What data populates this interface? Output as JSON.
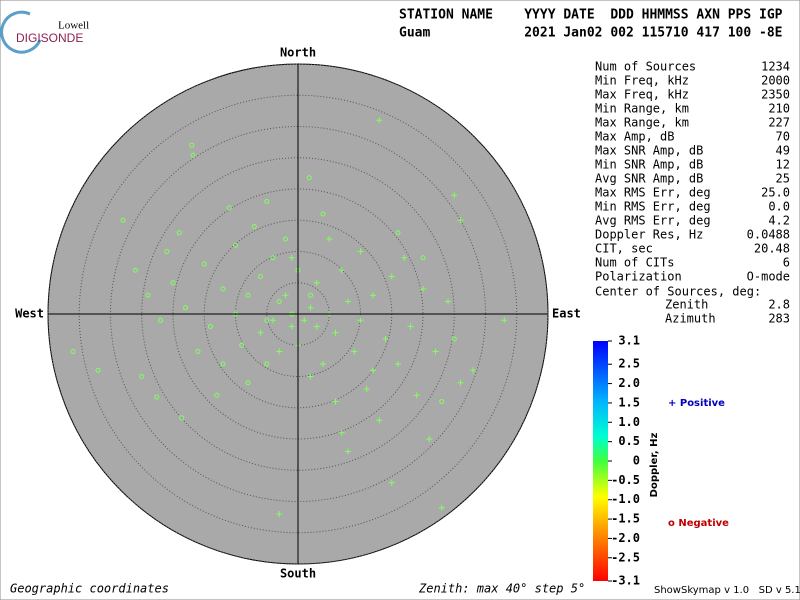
{
  "logo": {
    "top": "Lowell",
    "bottom": "DIGISONDE"
  },
  "header": {
    "labels": "STATION NAME    YYYY DATE  DDD HHMMSS AXN PPS IGP",
    "values": "Guam            2021 Jan02 002 115710 417 100 -8E"
  },
  "stats": {
    "rows": [
      [
        "Num of Sources",
        "1234"
      ],
      [
        "Min Freq, kHz",
        "2000"
      ],
      [
        "Max Freq, kHz",
        "2350"
      ],
      [
        "Min Range, km",
        "210"
      ],
      [
        "Max Range, km",
        "227"
      ],
      [
        "Max Amp, dB",
        "70"
      ],
      [
        "Max SNR Amp, dB",
        "49"
      ],
      [
        "Min SNR Amp, dB",
        "12"
      ],
      [
        "Avg SNR Amp, dB",
        "25"
      ],
      [
        "Max RMS Err, deg",
        "25.0"
      ],
      [
        "Min RMS Err, deg",
        "0.0"
      ],
      [
        "Avg RMS Err, deg",
        "4.2"
      ],
      [
        "Doppler Res, Hz",
        "0.0488"
      ],
      [
        "CIT, sec",
        "20.48"
      ],
      [
        "Num of CITs",
        "6"
      ],
      [
        "Polarization",
        "O-mode"
      ]
    ],
    "center_title": "Center of Sources, deg:",
    "center_rows": [
      [
        "Zenith",
        "2.8"
      ],
      [
        "Azimuth",
        "283"
      ]
    ]
  },
  "colorbar": {
    "title": "Doppler, Hz",
    "lim": [
      -3.1,
      3.1
    ],
    "ticks": [
      3.1,
      2.5,
      {
        "value": 2,
        "label": "2.0"
      },
      1.5,
      {
        "value": 1,
        "label": "1.0"
      },
      0.5,
      0,
      -0.5,
      {
        "value": -1,
        "label": "-1.0"
      },
      -1.5,
      {
        "value": -2,
        "label": "-2.0"
      },
      -2.5,
      -3.1
    ]
  },
  "legend": {
    "positive": "+ Positive",
    "negative": "o Negative"
  },
  "footer": {
    "left": "Geographic coordinates",
    "middle": "Zenith: max 40°  step 5°",
    "right": "ShowSkymap v 1.0   SD v 5.1"
  },
  "chart_data": {
    "type": "scatter",
    "directions": {
      "north": "North",
      "south": "South",
      "east": "East",
      "west": "West"
    },
    "rlim": [
      0,
      40
    ],
    "rticks": [
      5,
      10,
      15,
      20,
      25,
      30,
      35,
      40
    ],
    "series": [
      {
        "name": "Positive",
        "color": "#80ff60",
        "marker": "plus",
        "x": [
          13,
          25,
          26,
          33,
          -3,
          23,
          15,
          7,
          26,
          0,
          1,
          2,
          -1,
          3,
          5,
          6,
          8,
          10,
          12,
          14,
          9,
          4,
          2,
          11,
          16,
          18,
          20,
          15,
          7,
          3,
          -2,
          -4,
          -6,
          -3,
          0,
          6,
          13,
          19,
          22,
          17,
          10,
          5,
          -1,
          8,
          21,
          28,
          24,
          12
        ],
        "values": [
          31,
          19,
          15,
          -1,
          -32,
          -31,
          -27,
          -19,
          -11,
          0,
          -1,
          1,
          -2,
          -2,
          0,
          -3,
          2,
          -1,
          3,
          -4,
          -6,
          -8,
          -10,
          -12,
          -8,
          -2,
          4,
          6,
          7,
          5,
          3,
          -1,
          -3,
          -6,
          -5,
          -14,
          -17,
          -13,
          -6,
          9,
          10,
          12,
          9,
          -22,
          -20,
          -9,
          2,
          -9
        ]
      },
      {
        "name": "Negative",
        "color": "#80ff60",
        "marker": "circle",
        "x": [
          -17,
          -16.8,
          1.8,
          -28,
          -36,
          -32,
          -22.6,
          -18.6,
          -20,
          -15,
          -12,
          -10,
          -8,
          -6,
          -4,
          -2,
          -10,
          -14,
          -18,
          -22,
          -24,
          -9,
          -5,
          -12,
          -16,
          -7,
          0,
          2,
          -1,
          -3,
          -5,
          -26,
          -21,
          -11,
          -5,
          4,
          -13,
          -8,
          16,
          20,
          25,
          23,
          -25,
          -19
        ],
        "values": [
          27,
          25.4,
          21.8,
          15,
          -6,
          -9,
          -13.3,
          -16.6,
          5,
          8,
          4,
          0,
          3,
          6,
          9,
          12,
          11,
          -2,
          1,
          -1,
          3,
          -5,
          -8,
          -8,
          -6,
          14,
          7,
          3,
          0,
          2,
          -1,
          7,
          10,
          17,
          18,
          16,
          -13,
          -11,
          13,
          9,
          -4,
          -14,
          -10,
          13
        ]
      }
    ]
  }
}
